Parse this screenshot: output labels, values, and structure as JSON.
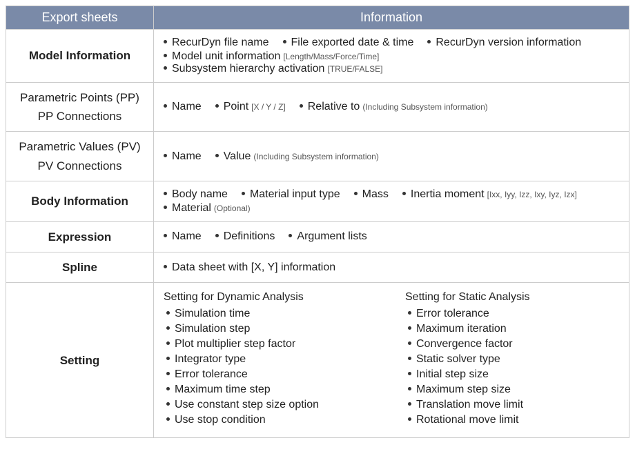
{
  "header": {
    "left": "Export sheets",
    "right": "Information"
  },
  "rows": [
    {
      "label": "Model Information",
      "bold": true,
      "lines": [
        [
          {
            "text": "RecurDyn file name"
          },
          {
            "text": "File exported date & time"
          },
          {
            "text": "RecurDyn version information"
          }
        ],
        [
          {
            "text": "Model unit information",
            "sub": "[Length/Mass/Force/Time]"
          },
          {
            "text": "Subsystem hierarchy activation",
            "sub": "[TRUE/FALSE]"
          }
        ]
      ]
    },
    {
      "label": "Parametric Points (PP)\nPP Connections",
      "bold": false,
      "lines": [
        [
          {
            "text": "Name"
          },
          {
            "text": "Point",
            "sub": "[X / Y / Z]"
          },
          {
            "text": "Relative to",
            "sub": "(Including Subsystem information)"
          }
        ]
      ]
    },
    {
      "label": "Parametric Values (PV)\nPV Connections",
      "bold": false,
      "lines": [
        [
          {
            "text": "Name"
          },
          {
            "text": "Value",
            "sub": "(Including Subsystem information)"
          }
        ]
      ]
    },
    {
      "label": "Body Information",
      "bold": true,
      "lines": [
        [
          {
            "text": "Body name"
          },
          {
            "text": "Material input type"
          },
          {
            "text": "Mass"
          },
          {
            "text": "Inertia moment",
            "sub": "[Ixx, Iyy, Izz, Ixy, Iyz, Izx]"
          }
        ],
        [
          {
            "text": "Material",
            "sub": "(Optional)"
          }
        ]
      ]
    },
    {
      "label": "Expression",
      "bold": true,
      "lines": [
        [
          {
            "text": "Name"
          },
          {
            "text": "Definitions"
          },
          {
            "text": "Argument lists"
          }
        ]
      ]
    },
    {
      "label": "Spline",
      "bold": true,
      "lines": [
        [
          {
            "text": "Data sheet with [X, Y] information"
          }
        ]
      ]
    }
  ],
  "setting": {
    "label": "Setting",
    "dynamic": {
      "title": "Setting for Dynamic Analysis",
      "items": [
        "Simulation time",
        "Simulation step",
        "Plot multiplier step factor",
        "Integrator type",
        "Error tolerance",
        "Maximum time step",
        "Use constant step size option",
        "Use stop condition"
      ]
    },
    "static": {
      "title": "Setting for Static Analysis",
      "items": [
        "Error tolerance",
        "Maximum iteration",
        "Convergence factor",
        "Static solver type",
        "Initial step size",
        "Maximum step size",
        "Translation move limit",
        "Rotational move limit"
      ]
    }
  },
  "colors": {
    "header_bg": "#7a8aa8",
    "header_fg": "#ffffff",
    "border": "#cccccc",
    "text": "#222222",
    "subtext": "#555555",
    "bg": "#ffffff"
  }
}
